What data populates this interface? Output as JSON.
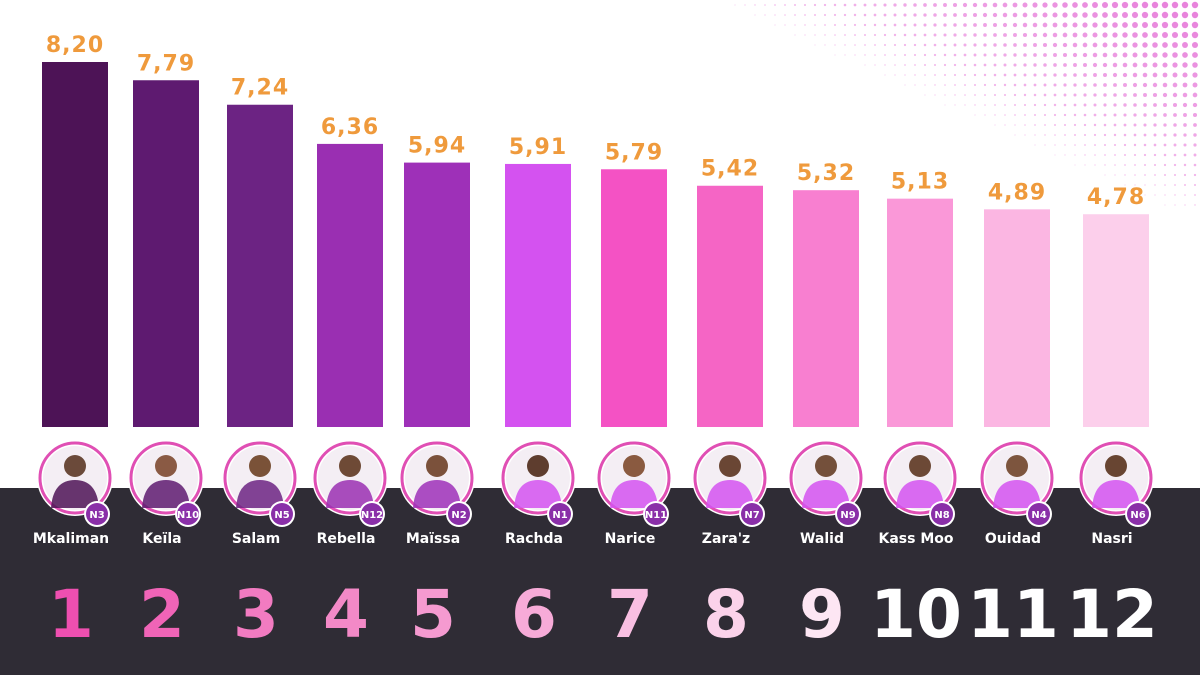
{
  "chart_data": {
    "type": "bar",
    "title": "",
    "xlabel": "",
    "ylabel": "",
    "ylim": [
      0,
      8.2
    ],
    "categories": [
      "Mkaliman",
      "Keïla",
      "Salam",
      "Rebella",
      "Maïssa",
      "Rachda",
      "Narice",
      "Zara'z",
      "Walid",
      "Kass Moo",
      "Ouidad",
      "Nasri"
    ],
    "values": [
      8.2,
      7.79,
      7.24,
      6.36,
      5.94,
      5.91,
      5.79,
      5.42,
      5.32,
      5.13,
      4.89,
      4.78
    ],
    "value_labels": [
      "8,20",
      "7,79",
      "7,24",
      "6,36",
      "5,94",
      "5,91",
      "5,79",
      "5,42",
      "5,32",
      "5,13",
      "4,89",
      "4,78"
    ],
    "badges": [
      "N3",
      "N10",
      "N5",
      "N12",
      "N2",
      "N1",
      "N11",
      "N7",
      "N9",
      "N8",
      "N4",
      "N6"
    ],
    "ranks": [
      "1",
      "2",
      "3",
      "4",
      "5",
      "6",
      "7",
      "8",
      "9",
      "10",
      "11",
      "12"
    ],
    "bar_colors": [
      "#4d1356",
      "#5e1a70",
      "#6c2383",
      "#9a2fb2",
      "#9e30b8",
      "#d452f0",
      "#f452c4",
      "#f565c5",
      "#f87fd0",
      "#fa98d8",
      "#fbb6e2",
      "#fccfeb"
    ],
    "rank_colors": [
      "#ee4fb0",
      "#f064b7",
      "#f27bc1",
      "#f389c7",
      "#f59ad0",
      "#f7abd8",
      "#f9bfe2",
      "#fbd2ea",
      "#fde6f3",
      "#ffffff",
      "#ffffff",
      "#ffffff"
    ],
    "avatar_colors": [
      "#6b4a3a",
      "#8a5a44",
      "#7a5238",
      "#6e4a36",
      "#7b513b",
      "#5e3d2e",
      "#8a5a40",
      "#6a4634",
      "#74503b",
      "#6c4936",
      "#7d553e",
      "#684532"
    ],
    "panel_color": "#2f2c35",
    "value_color": "#ef9a3c",
    "ring_color": "#e04fb4",
    "badge_color": "#8a2fa8"
  }
}
